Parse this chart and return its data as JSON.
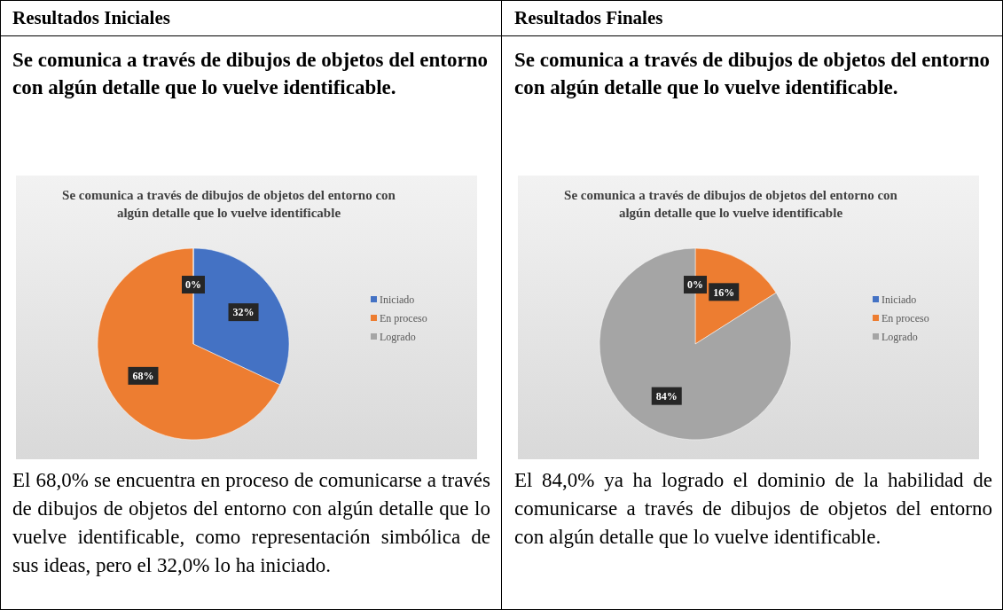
{
  "chart_data": [
    {
      "type": "pie",
      "title": "Se comunica a través de dibujos de objetos del entorno con algún detalle que lo vuelve identificable",
      "categories": [
        "Iniciado",
        "En proceso",
        "Logrado"
      ],
      "values": [
        32,
        68,
        0
      ],
      "colors": [
        "#4472c4",
        "#ed7d31",
        "#a5a5a5"
      ],
      "value_labels": [
        "32%",
        "68%",
        "0%"
      ],
      "legend": "right",
      "annotations": [
        "Resultados Iniciales",
        "Se comunica a través de dibujos de objetos del entorno con algún detalle que lo vuelve identificable.",
        "El 68,0% se encuentra en proceso de comunicarse a través de dibujos de objetos del entorno con algún detalle que lo vuelve identificable, como representación simbólica de sus ideas, pero el 32,0% lo ha iniciado."
      ]
    },
    {
      "type": "pie",
      "title": "Se comunica a través de dibujos de objetos del entorno con algún detalle que lo vuelve identificable",
      "categories": [
        "Iniciado",
        "En proceso",
        "Logrado"
      ],
      "values": [
        0,
        16,
        84
      ],
      "colors": [
        "#4472c4",
        "#ed7d31",
        "#a5a5a5"
      ],
      "value_labels": [
        "0%",
        "16%",
        "84%"
      ],
      "legend": "right",
      "annotations": [
        "Resultados Finales",
        "Se comunica a través de dibujos de objetos del entorno con algún detalle que lo vuelve identificable.",
        "El 84,0% ya ha logrado el dominio de la habilidad de comunicarse a través de dibujos de objetos del entorno con algún detalle que lo vuelve identificable."
      ]
    }
  ]
}
